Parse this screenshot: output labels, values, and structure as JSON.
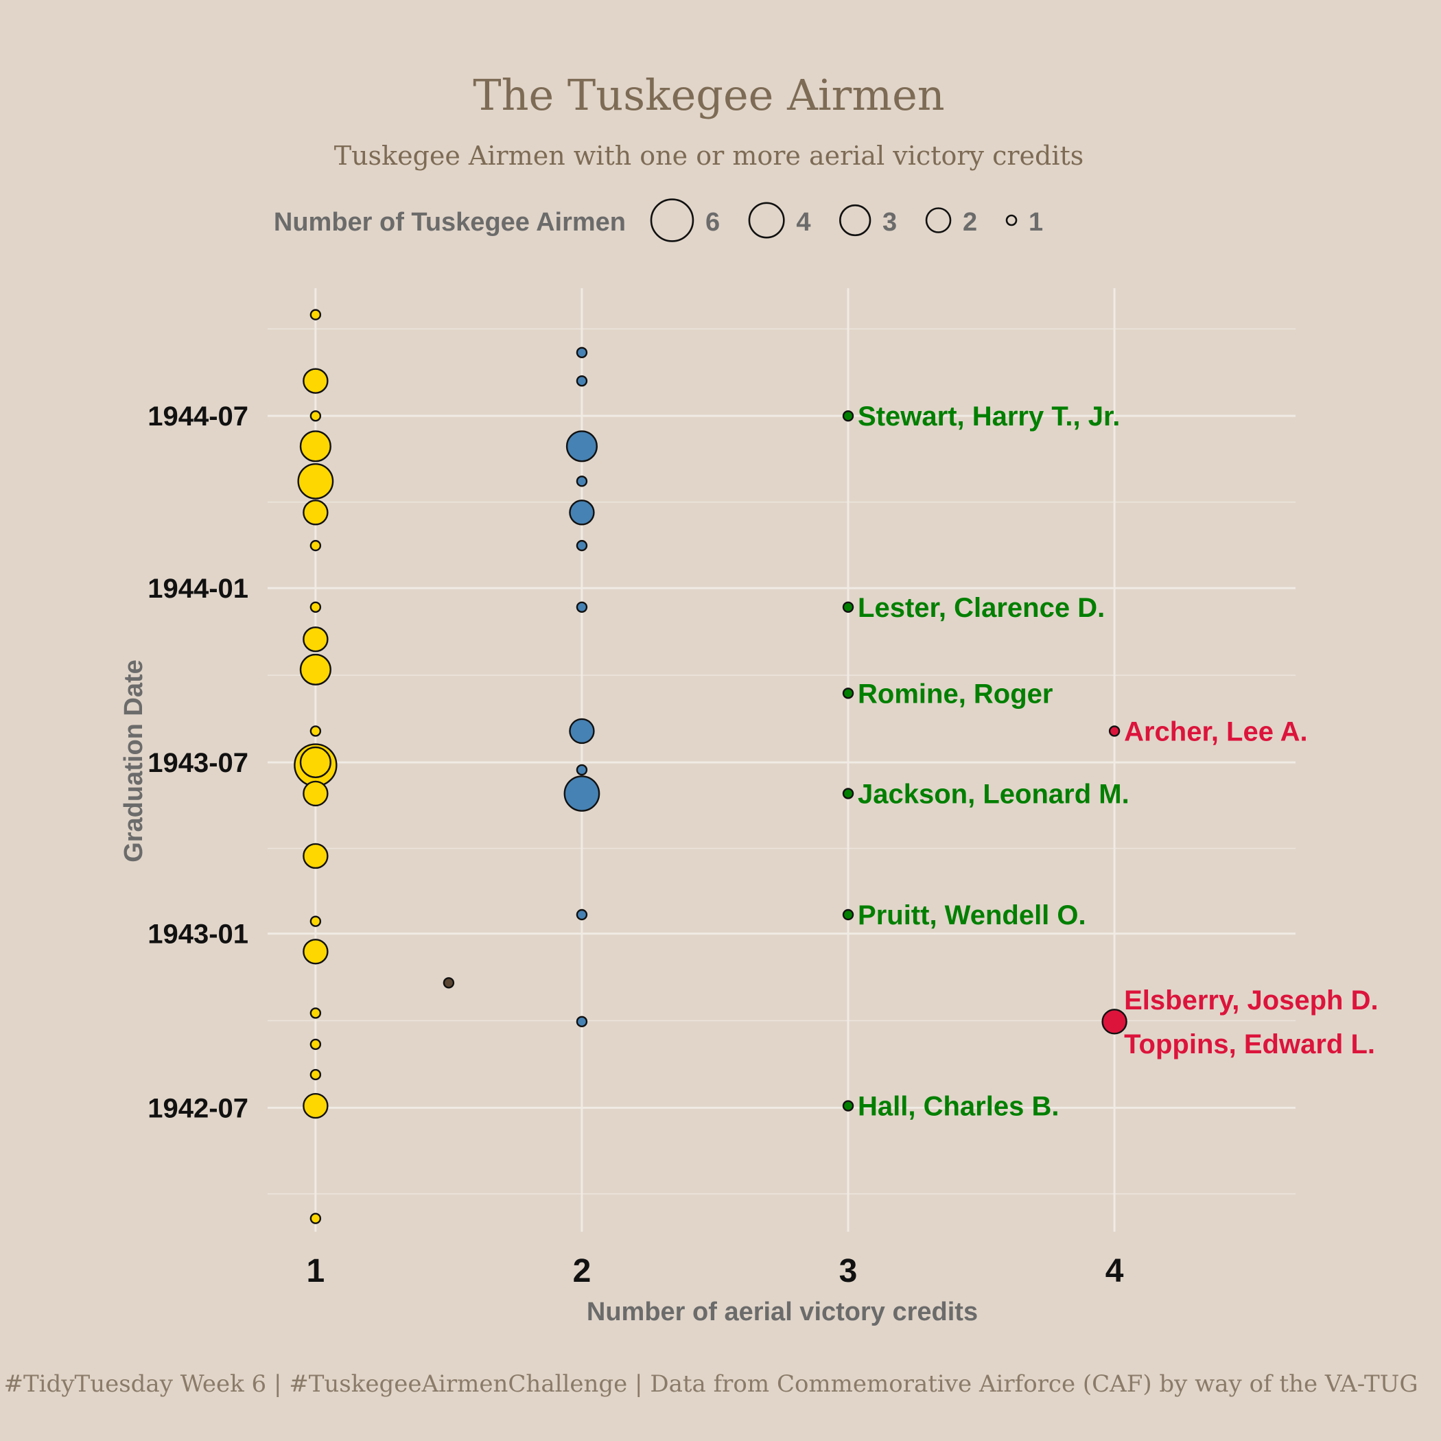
{
  "colors": {
    "background": "#e1d5c9",
    "credits_1": "#ffd700",
    "credits_1_5": "#5a4632",
    "credits_2": "#4682b4",
    "credits_3": "#007f00",
    "credits_4": "#dc143c",
    "title": "#7d6b55"
  },
  "title": "The Tuskegee Airmen",
  "subtitle": "Tuskegee Airmen with one or more aerial victory credits",
  "caption": "#TidyTuesday Week 6 | #TuskegeeAirmenChallenge | Data from Commemorative Airforce (CAF) by way of the VA-TUG",
  "legend": {
    "title": "Number of Tuskegee Airmen",
    "entries": [
      {
        "label": "6",
        "n": 6
      },
      {
        "label": "4",
        "n": 4
      },
      {
        "label": "3",
        "n": 3
      },
      {
        "label": "2",
        "n": 2
      },
      {
        "label": "1",
        "n": 1
      }
    ]
  },
  "chart_data": {
    "type": "scatter",
    "title": "The Tuskegee Airmen",
    "subtitle": "Tuskegee Airmen with one or more aerial victory credits",
    "xlabel": "Number of aerial victory credits",
    "ylabel": "Graduation Date",
    "x_ticks": [
      "1",
      "2",
      "3",
      "4"
    ],
    "y_ticks": [
      "1942-07",
      "1943-01",
      "1943-07",
      "1944-01",
      "1944-07"
    ],
    "xlim": [
      0.82,
      4.68
    ],
    "ylim": [
      "1942-02-20",
      "1944-11-13"
    ],
    "size_legend": "Number of Tuskegee Airmen",
    "grid": true,
    "legend_position": "top",
    "points": [
      {
        "credits": 1,
        "date": "1942-03-06",
        "count": 1
      },
      {
        "credits": 1,
        "date": "1942-07-03",
        "count": 2
      },
      {
        "credits": 1,
        "date": "1942-08-05",
        "count": 1
      },
      {
        "credits": 1,
        "date": "1942-09-06",
        "count": 1
      },
      {
        "credits": 1,
        "date": "1942-10-09",
        "count": 1
      },
      {
        "credits": 1,
        "date": "1942-12-13",
        "count": 2
      },
      {
        "credits": 1,
        "date": "1943-01-14",
        "count": 1
      },
      {
        "credits": 1,
        "date": "1943-03-24",
        "count": 2
      },
      {
        "credits": 1,
        "date": "1943-05-29",
        "count": 2
      },
      {
        "credits": 1,
        "date": "1943-06-28",
        "count": 6
      },
      {
        "credits": 1,
        "date": "1943-07-01",
        "count": 3
      },
      {
        "credits": 1,
        "date": "1943-08-03",
        "count": 1
      },
      {
        "credits": 1,
        "date": "1943-10-07",
        "count": 3
      },
      {
        "credits": 1,
        "date": "1943-11-08",
        "count": 2
      },
      {
        "credits": 1,
        "date": "1943-12-12",
        "count": 1
      },
      {
        "credits": 1,
        "date": "1944-02-15",
        "count": 1
      },
      {
        "credits": 1,
        "date": "1944-03-21",
        "count": 2
      },
      {
        "credits": 1,
        "date": "1944-04-23",
        "count": 4
      },
      {
        "credits": 1,
        "date": "1944-05-30",
        "count": 3
      },
      {
        "credits": 1,
        "date": "1944-07-01",
        "count": 1
      },
      {
        "credits": 1,
        "date": "1944-08-07",
        "count": 2
      },
      {
        "credits": 1,
        "date": "1944-10-16",
        "count": 1
      },
      {
        "credits": 1.5,
        "date": "1942-11-10",
        "count": 1
      },
      {
        "credits": 2,
        "date": "1942-09-30",
        "count": 1
      },
      {
        "credits": 2,
        "date": "1943-01-21",
        "count": 1
      },
      {
        "credits": 2,
        "date": "1943-05-29",
        "count": 4
      },
      {
        "credits": 2,
        "date": "1943-06-23",
        "count": 1
      },
      {
        "credits": 2,
        "date": "1943-08-03",
        "count": 2
      },
      {
        "credits": 2,
        "date": "1943-12-12",
        "count": 1
      },
      {
        "credits": 2,
        "date": "1944-02-15",
        "count": 1
      },
      {
        "credits": 2,
        "date": "1944-03-21",
        "count": 2
      },
      {
        "credits": 2,
        "date": "1944-04-23",
        "count": 1
      },
      {
        "credits": 2,
        "date": "1944-05-30",
        "count": 3
      },
      {
        "credits": 2,
        "date": "1944-08-07",
        "count": 1
      },
      {
        "credits": 2,
        "date": "1944-09-06",
        "count": 1
      },
      {
        "credits": 3,
        "date": "1942-07-03",
        "count": 1
      },
      {
        "credits": 3,
        "date": "1943-01-21",
        "count": 1
      },
      {
        "credits": 3,
        "date": "1943-05-29",
        "count": 1
      },
      {
        "credits": 3,
        "date": "1943-09-12",
        "count": 1
      },
      {
        "credits": 3,
        "date": "1943-12-12",
        "count": 1
      },
      {
        "credits": 3,
        "date": "1944-07-01",
        "count": 1
      },
      {
        "credits": 4,
        "date": "1942-09-30",
        "count": 2
      },
      {
        "credits": 4,
        "date": "1943-08-03",
        "count": 1
      }
    ],
    "annotations": [
      {
        "text": "Stewart, Harry T., Jr.",
        "credits": 3,
        "date": "1944-07-01",
        "placement": "right"
      },
      {
        "text": "Lester, Clarence D.",
        "credits": 3,
        "date": "1943-12-12",
        "placement": "right"
      },
      {
        "text": "Romine, Roger",
        "credits": 3,
        "date": "1943-09-12",
        "placement": "right"
      },
      {
        "text": "Jackson, Leonard M.",
        "credits": 3,
        "date": "1943-05-29",
        "placement": "right"
      },
      {
        "text": "Pruitt, Wendell O.",
        "credits": 3,
        "date": "1943-01-21",
        "placement": "right"
      },
      {
        "text": "Hall, Charles B.",
        "credits": 3,
        "date": "1942-07-03",
        "placement": "right"
      },
      {
        "text": "Archer, Lee A.",
        "credits": 4,
        "date": "1943-08-03",
        "placement": "right"
      },
      {
        "text": "Elsberry, Joseph D.",
        "credits": 4,
        "date": "1942-09-30",
        "placement": "above-right"
      },
      {
        "text": "Toppins, Edward L.",
        "credits": 4,
        "date": "1942-09-30",
        "placement": "below-right"
      }
    ]
  }
}
